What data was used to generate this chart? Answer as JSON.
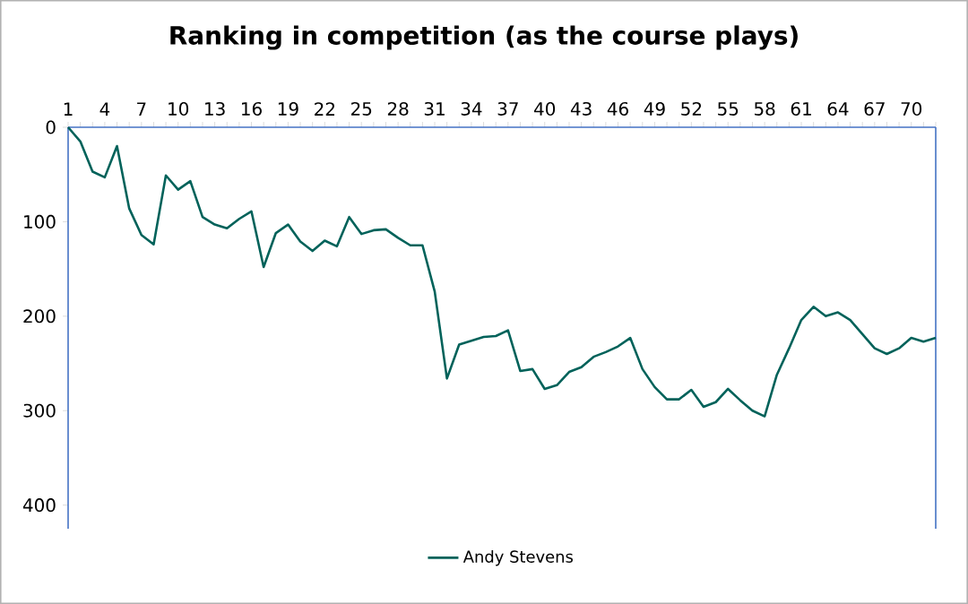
{
  "chart_data": {
    "type": "line",
    "title": "Ranking in competition (as the course plays)",
    "categories": [
      "1",
      null,
      null,
      "4",
      null,
      null,
      "7",
      null,
      null,
      "10",
      null,
      null,
      "13",
      null,
      null,
      "16",
      null,
      null,
      "19",
      null,
      null,
      "22",
      null,
      null,
      "25",
      null,
      null,
      "28",
      null,
      null,
      "31",
      null,
      null,
      "34",
      null,
      null,
      "37",
      null,
      null,
      "40",
      null,
      null,
      "43",
      null,
      null,
      "46",
      null,
      null,
      "49",
      null,
      null,
      "52",
      null,
      null,
      "55",
      null,
      null,
      "58",
      null,
      null,
      "61",
      null,
      null,
      "64",
      null,
      null,
      "67",
      null,
      null,
      "70",
      null,
      null
    ],
    "series": [
      {
        "name": "Andy Stevens",
        "color": "#00625a",
        "values": [
          0,
          15,
          47,
          53,
          20,
          86,
          114,
          124,
          51,
          66,
          57,
          95,
          103,
          107,
          97,
          89,
          148,
          112,
          103,
          121,
          131,
          120,
          126,
          95,
          113,
          109,
          108,
          117,
          125,
          125,
          174,
          266,
          230,
          226,
          222,
          221,
          215,
          258,
          256,
          277,
          273,
          259,
          254,
          243,
          238,
          232,
          223,
          256,
          275,
          288,
          288,
          278,
          296,
          291,
          277,
          289,
          300,
          306,
          262,
          234,
          204,
          190,
          200,
          196,
          204,
          219,
          234,
          240,
          234,
          223,
          227,
          223
        ]
      }
    ],
    "ylim": [
      425,
      0
    ],
    "yticks": [
      0,
      100,
      200,
      300,
      400
    ],
    "grid": false,
    "legend": "bottom",
    "marker": "none",
    "line_style": "solid"
  }
}
